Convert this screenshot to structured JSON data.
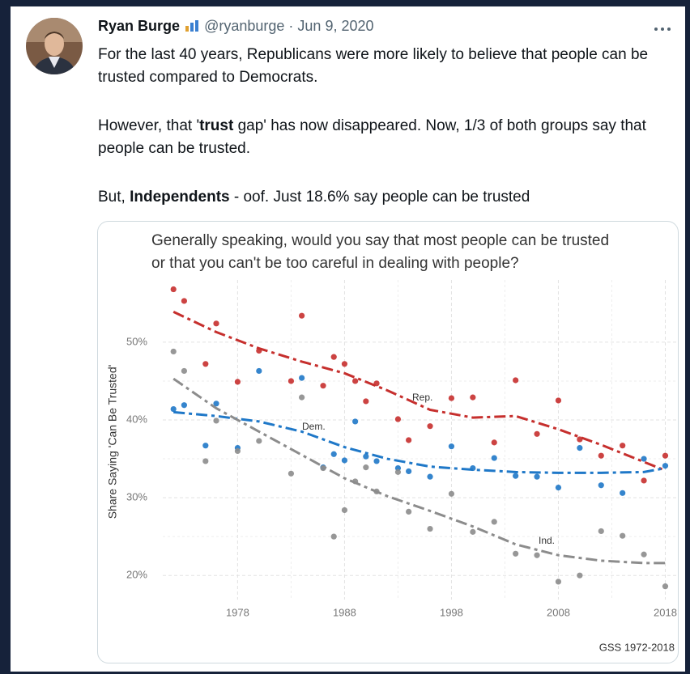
{
  "tweet": {
    "name": "Ryan Burge",
    "handle": "@ryanburge",
    "separator": "·",
    "date": "Jun 9, 2020",
    "paragraphs": [
      [
        "For the last 40 years, Republicans were more likely to believe that people can be trusted compared to Democrats."
      ],
      [
        "However, that '",
        {
          "text": "trust",
          "bold": true
        },
        " gap' has now disappeared. Now, 1/3 of both groups say that people can be trusted."
      ],
      [
        "But, ",
        {
          "text": "Independents",
          "bold": true
        },
        " - oof. Just 18.6% say people can be trusted"
      ]
    ]
  },
  "chart_data": {
    "type": "scatter",
    "title": [
      "Generally speaking, would you say that most people can be trusted",
      "or that you can't be too careful in dealing with people?"
    ],
    "ylabel": "Share Saying 'Can Be Trusted'",
    "caption": "GSS 1972-2018",
    "x": [
      1972,
      1973,
      1975,
      1976,
      1978,
      1980,
      1983,
      1984,
      1986,
      1987,
      1988,
      1989,
      1990,
      1991,
      1993,
      1994,
      1996,
      1998,
      2000,
      2002,
      2004,
      2006,
      2008,
      2010,
      2012,
      2014,
      2016,
      2018
    ],
    "trend_x": [
      1972,
      1976,
      1980,
      1984,
      1988,
      1992,
      1996,
      2000,
      2004,
      2008,
      2012,
      2016,
      2018
    ],
    "series": [
      {
        "name": "Rep.",
        "color": "#c62f2d",
        "values": [
          56.8,
          55.3,
          47.2,
          52.4,
          44.9,
          48.9,
          45.0,
          53.4,
          44.4,
          48.1,
          47.2,
          45.0,
          42.4,
          44.7,
          40.1,
          37.4,
          39.2,
          42.8,
          42.9,
          37.1,
          45.1,
          38.2,
          42.5,
          37.5,
          35.4,
          36.7,
          32.2,
          35.4
        ],
        "trend": [
          53.9,
          51.3,
          49.2,
          47.5,
          46.0,
          43.8,
          41.3,
          40.3,
          40.5,
          38.8,
          36.8,
          34.6,
          33.5
        ]
      },
      {
        "name": "Dem.",
        "color": "#1f78c8",
        "values": [
          41.4,
          41.9,
          36.7,
          42.1,
          36.4,
          46.3,
          null,
          45.4,
          33.9,
          35.6,
          34.8,
          39.8,
          35.3,
          34.7,
          33.8,
          33.4,
          32.7,
          36.6,
          33.8,
          35.1,
          32.8,
          32.7,
          31.3,
          36.4,
          31.6,
          30.6,
          35.0,
          34.1
        ],
        "trend": [
          41.0,
          40.5,
          39.8,
          38.5,
          36.5,
          35.0,
          34.0,
          33.6,
          33.3,
          33.2,
          33.2,
          33.3,
          33.8
        ]
      },
      {
        "name": "Ind.",
        "color": "#8c8c8c",
        "values": [
          48.8,
          46.3,
          34.7,
          39.9,
          36.0,
          37.3,
          33.1,
          42.9,
          33.8,
          25.0,
          28.4,
          32.1,
          33.9,
          30.8,
          33.3,
          28.2,
          26.0,
          30.5,
          25.6,
          26.9,
          22.8,
          22.6,
          19.2,
          20.0,
          25.7,
          25.1,
          22.7,
          18.6
        ],
        "trend": [
          45.3,
          41.5,
          38.5,
          35.5,
          32.5,
          30.2,
          28.3,
          26.3,
          24.0,
          22.6,
          21.9,
          21.6,
          21.6
        ]
      }
    ],
    "xlim": [
      1971,
      2019.1
    ],
    "ylim": [
      16.9,
      58
    ],
    "xticks": [
      1978,
      1988,
      1998,
      2008,
      2018
    ],
    "yticks": [
      {
        "value": 20,
        "label": "20%"
      },
      {
        "value": 30,
        "label": "30%"
      },
      {
        "value": 40,
        "label": "40%"
      },
      {
        "value": 50,
        "label": "50%"
      }
    ],
    "grid": true,
    "minor_grid": true
  }
}
